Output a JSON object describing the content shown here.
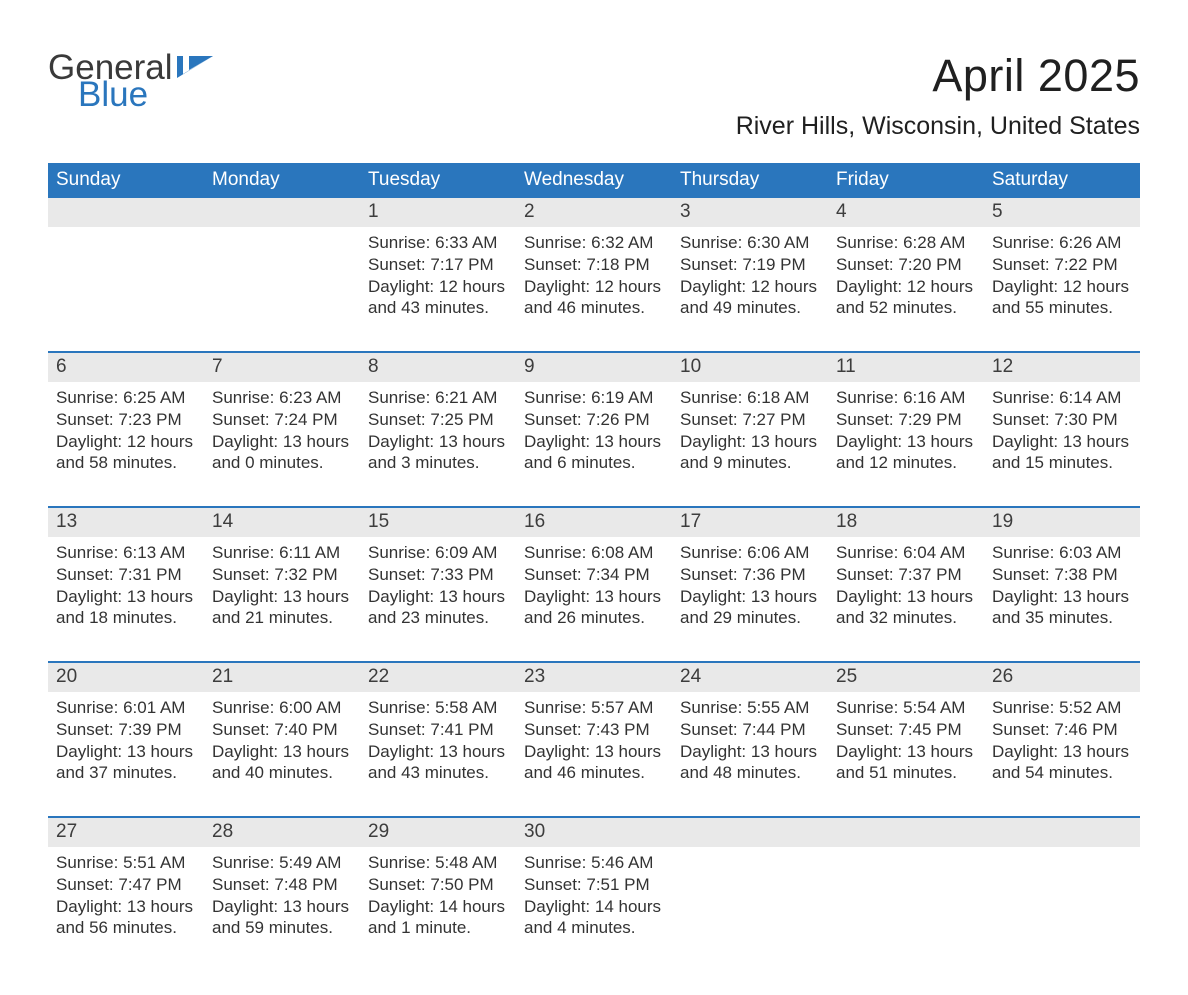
{
  "logo": {
    "general": "General",
    "blue": "Blue"
  },
  "title": "April 2025",
  "subtitle": "River Hills, Wisconsin, United States",
  "colors": {
    "header_bg": "#2a76bd",
    "header_text": "#ffffff",
    "daynum_bg": "#e9e9e9",
    "sep": "#2a76bd",
    "text": "#333333",
    "page_bg": "#ffffff",
    "logo_gray": "#3a3a3a",
    "logo_blue": "#2a76bd"
  },
  "fontsize": {
    "title": 45,
    "subtitle": 25,
    "dow": 19,
    "daynum": 19,
    "body": 17,
    "logo": 35
  },
  "days_of_week": [
    "Sunday",
    "Monday",
    "Tuesday",
    "Wednesday",
    "Thursday",
    "Friday",
    "Saturday"
  ],
  "weeks": [
    [
      {
        "n": "",
        "lines": []
      },
      {
        "n": "",
        "lines": []
      },
      {
        "n": "1",
        "lines": [
          "Sunrise: 6:33 AM",
          "Sunset: 7:17 PM",
          "Daylight: 12 hours and 43 minutes."
        ]
      },
      {
        "n": "2",
        "lines": [
          "Sunrise: 6:32 AM",
          "Sunset: 7:18 PM",
          "Daylight: 12 hours and 46 minutes."
        ]
      },
      {
        "n": "3",
        "lines": [
          "Sunrise: 6:30 AM",
          "Sunset: 7:19 PM",
          "Daylight: 12 hours and 49 minutes."
        ]
      },
      {
        "n": "4",
        "lines": [
          "Sunrise: 6:28 AM",
          "Sunset: 7:20 PM",
          "Daylight: 12 hours and 52 minutes."
        ]
      },
      {
        "n": "5",
        "lines": [
          "Sunrise: 6:26 AM",
          "Sunset: 7:22 PM",
          "Daylight: 12 hours and 55 minutes."
        ]
      }
    ],
    [
      {
        "n": "6",
        "lines": [
          "Sunrise: 6:25 AM",
          "Sunset: 7:23 PM",
          "Daylight: 12 hours and 58 minutes."
        ]
      },
      {
        "n": "7",
        "lines": [
          "Sunrise: 6:23 AM",
          "Sunset: 7:24 PM",
          "Daylight: 13 hours and 0 minutes."
        ]
      },
      {
        "n": "8",
        "lines": [
          "Sunrise: 6:21 AM",
          "Sunset: 7:25 PM",
          "Daylight: 13 hours and 3 minutes."
        ]
      },
      {
        "n": "9",
        "lines": [
          "Sunrise: 6:19 AM",
          "Sunset: 7:26 PM",
          "Daylight: 13 hours and 6 minutes."
        ]
      },
      {
        "n": "10",
        "lines": [
          "Sunrise: 6:18 AM",
          "Sunset: 7:27 PM",
          "Daylight: 13 hours and 9 minutes."
        ]
      },
      {
        "n": "11",
        "lines": [
          "Sunrise: 6:16 AM",
          "Sunset: 7:29 PM",
          "Daylight: 13 hours and 12 minutes."
        ]
      },
      {
        "n": "12",
        "lines": [
          "Sunrise: 6:14 AM",
          "Sunset: 7:30 PM",
          "Daylight: 13 hours and 15 minutes."
        ]
      }
    ],
    [
      {
        "n": "13",
        "lines": [
          "Sunrise: 6:13 AM",
          "Sunset: 7:31 PM",
          "Daylight: 13 hours and 18 minutes."
        ]
      },
      {
        "n": "14",
        "lines": [
          "Sunrise: 6:11 AM",
          "Sunset: 7:32 PM",
          "Daylight: 13 hours and 21 minutes."
        ]
      },
      {
        "n": "15",
        "lines": [
          "Sunrise: 6:09 AM",
          "Sunset: 7:33 PM",
          "Daylight: 13 hours and 23 minutes."
        ]
      },
      {
        "n": "16",
        "lines": [
          "Sunrise: 6:08 AM",
          "Sunset: 7:34 PM",
          "Daylight: 13 hours and 26 minutes."
        ]
      },
      {
        "n": "17",
        "lines": [
          "Sunrise: 6:06 AM",
          "Sunset: 7:36 PM",
          "Daylight: 13 hours and 29 minutes."
        ]
      },
      {
        "n": "18",
        "lines": [
          "Sunrise: 6:04 AM",
          "Sunset: 7:37 PM",
          "Daylight: 13 hours and 32 minutes."
        ]
      },
      {
        "n": "19",
        "lines": [
          "Sunrise: 6:03 AM",
          "Sunset: 7:38 PM",
          "Daylight: 13 hours and 35 minutes."
        ]
      }
    ],
    [
      {
        "n": "20",
        "lines": [
          "Sunrise: 6:01 AM",
          "Sunset: 7:39 PM",
          "Daylight: 13 hours and 37 minutes."
        ]
      },
      {
        "n": "21",
        "lines": [
          "Sunrise: 6:00 AM",
          "Sunset: 7:40 PM",
          "Daylight: 13 hours and 40 minutes."
        ]
      },
      {
        "n": "22",
        "lines": [
          "Sunrise: 5:58 AM",
          "Sunset: 7:41 PM",
          "Daylight: 13 hours and 43 minutes."
        ]
      },
      {
        "n": "23",
        "lines": [
          "Sunrise: 5:57 AM",
          "Sunset: 7:43 PM",
          "Daylight: 13 hours and 46 minutes."
        ]
      },
      {
        "n": "24",
        "lines": [
          "Sunrise: 5:55 AM",
          "Sunset: 7:44 PM",
          "Daylight: 13 hours and 48 minutes."
        ]
      },
      {
        "n": "25",
        "lines": [
          "Sunrise: 5:54 AM",
          "Sunset: 7:45 PM",
          "Daylight: 13 hours and 51 minutes."
        ]
      },
      {
        "n": "26",
        "lines": [
          "Sunrise: 5:52 AM",
          "Sunset: 7:46 PM",
          "Daylight: 13 hours and 54 minutes."
        ]
      }
    ],
    [
      {
        "n": "27",
        "lines": [
          "Sunrise: 5:51 AM",
          "Sunset: 7:47 PM",
          "Daylight: 13 hours and 56 minutes."
        ]
      },
      {
        "n": "28",
        "lines": [
          "Sunrise: 5:49 AM",
          "Sunset: 7:48 PM",
          "Daylight: 13 hours and 59 minutes."
        ]
      },
      {
        "n": "29",
        "lines": [
          "Sunrise: 5:48 AM",
          "Sunset: 7:50 PM",
          "Daylight: 14 hours and 1 minute."
        ]
      },
      {
        "n": "30",
        "lines": [
          "Sunrise: 5:46 AM",
          "Sunset: 7:51 PM",
          "Daylight: 14 hours and 4 minutes."
        ]
      },
      {
        "n": "",
        "lines": []
      },
      {
        "n": "",
        "lines": []
      },
      {
        "n": "",
        "lines": []
      }
    ]
  ]
}
